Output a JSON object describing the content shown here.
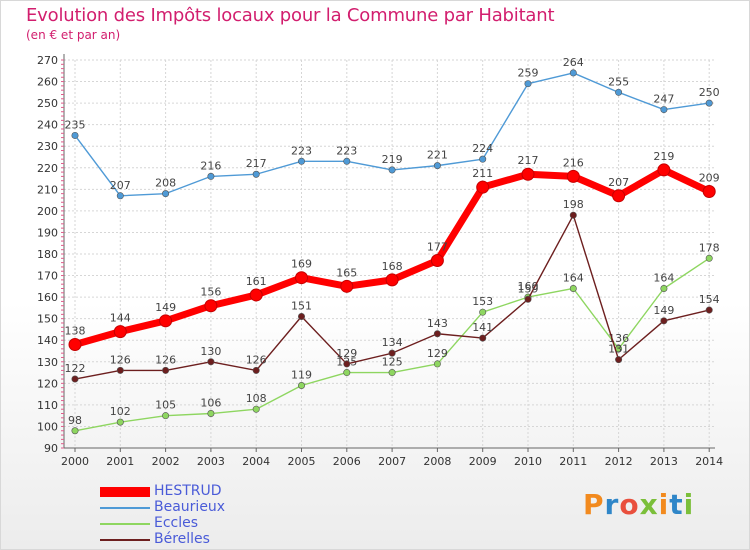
{
  "title": "Evolution des Impôts locaux pour la Commune par Habitant",
  "subtitle": "(en € et par an)",
  "logo": {
    "text": "Proxiti",
    "letters": [
      "P",
      "r",
      "o",
      "x",
      "i",
      "t",
      "i"
    ],
    "colors": [
      "#f28a1e",
      "#2f86c8",
      "#e94f3d",
      "#7bbf3a",
      "#f28a1e",
      "#2f86c8",
      "#7bbf3a"
    ]
  },
  "chart_data": {
    "type": "line",
    "title": "Evolution des Impôts locaux pour la Commune par Habitant",
    "subtitle": "(en € et par an)",
    "x": [
      "2000",
      "2001",
      "2002",
      "2003",
      "2004",
      "2005",
      "2006",
      "2007",
      "2008",
      "2009",
      "2010",
      "2011",
      "2012",
      "2013",
      "2014"
    ],
    "yticks": [
      90,
      100,
      110,
      120,
      130,
      140,
      150,
      160,
      170,
      180,
      190,
      200,
      210,
      220,
      230,
      240,
      250,
      260,
      270
    ],
    "ylim": [
      90,
      270
    ],
    "grid": true,
    "legend_position": "bottom-left",
    "series": [
      {
        "name": "HESTRUD",
        "color": "#ff0000",
        "values": [
          138,
          144,
          149,
          156,
          161,
          169,
          165,
          168,
          177,
          211,
          217,
          216,
          207,
          219,
          209
        ]
      },
      {
        "name": "Beaurieux",
        "color": "#4f9ad6",
        "values": [
          235,
          207,
          208,
          216,
          217,
          223,
          223,
          219,
          221,
          224,
          259,
          264,
          255,
          247,
          250
        ]
      },
      {
        "name": "Eccles",
        "color": "#8ed660",
        "values": [
          98,
          102,
          105,
          106,
          108,
          119,
          125,
          125,
          129,
          153,
          160,
          164,
          136,
          164,
          178
        ]
      },
      {
        "name": "Bérelles",
        "color": "#6d1f1f",
        "values": [
          122,
          126,
          126,
          130,
          126,
          151,
          129,
          134,
          143,
          141,
          159,
          198,
          131,
          149,
          154
        ]
      }
    ]
  }
}
